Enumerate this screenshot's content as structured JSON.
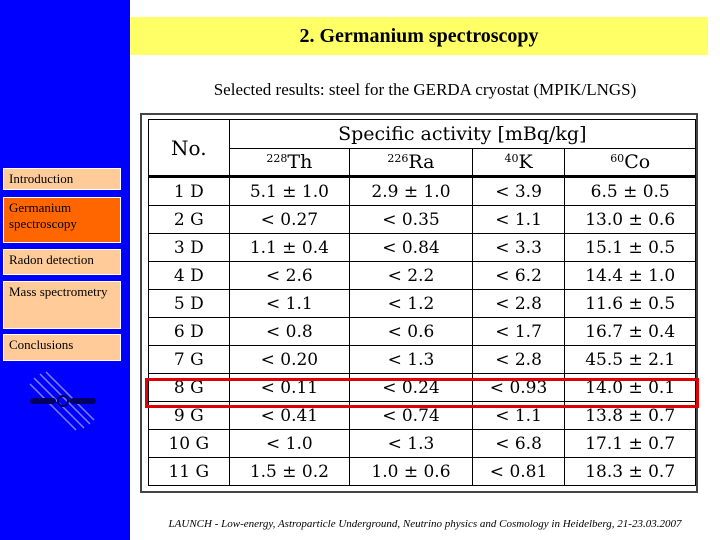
{
  "slide": {
    "title": "2. Germanium spectroscopy",
    "subtitle": "Selected results: steel for the GERDA cryostat (MPIK/LNGS)",
    "footer": "LAUNCH - Low-energy, Astroparticle Underground, Neutrino physics and Cosmology in Heidelberg, 21-23.03.2007"
  },
  "nav": {
    "items": [
      {
        "label": "Introduction",
        "style": "light"
      },
      {
        "label": "Germanium spectroscopy",
        "style": "active"
      },
      {
        "label": "Radon detection",
        "style": "light"
      },
      {
        "label": "Mass spectrometry",
        "style": "light"
      },
      {
        "label": "Conclusions",
        "style": "light"
      }
    ]
  },
  "table": {
    "header_no": "No.",
    "header_activity": "Specific activity [mBq/kg]",
    "isotopes": [
      {
        "mass": "228",
        "symbol": "Th"
      },
      {
        "mass": "226",
        "symbol": "Ra"
      },
      {
        "mass": "40",
        "symbol": "K"
      },
      {
        "mass": "60",
        "symbol": "Co"
      }
    ],
    "rows": [
      [
        "1 D",
        "5.1 ± 1.0",
        "2.9 ± 1.0",
        "< 3.9",
        "6.5 ± 0.5"
      ],
      [
        "2 G",
        "< 0.27",
        "< 0.35",
        "< 1.1",
        "13.0 ± 0.6"
      ],
      [
        "3 D",
        "1.1 ± 0.4",
        "< 0.84",
        "< 3.3",
        "15.1 ± 0.5"
      ],
      [
        "4 D",
        "< 2.6",
        "< 2.2",
        "< 6.2",
        "14.4 ± 1.0"
      ],
      [
        "5 D",
        "< 1.1",
        "< 1.2",
        "< 2.8",
        "11.6 ± 0.5"
      ],
      [
        "6 D",
        "< 0.8",
        "< 0.6",
        "< 1.7",
        "16.7 ± 0.4"
      ],
      [
        "7 G",
        "< 0.20",
        "< 1.3",
        "< 2.8",
        "45.5 ± 2.1"
      ],
      [
        "8 G",
        "< 0.11",
        "< 0.24",
        "< 0.93",
        "14.0 ± 0.1"
      ],
      [
        "9 G",
        "< 0.41",
        "< 0.74",
        "< 1.1",
        "13.8 ± 0.7"
      ],
      [
        "10 G",
        "< 1.0",
        "< 1.3",
        "< 6.8",
        "17.1 ± 0.7"
      ],
      [
        "11 G",
        "1.5 ± 0.2",
        "1.0 ± 0.6",
        "< 0.81",
        "18.3 ± 0.7"
      ]
    ],
    "highlighted_row": "8 G"
  },
  "colors": {
    "sidebar": "#0000ff",
    "title_bar": "#ffff66",
    "nav_active": "#ff6600",
    "nav_inactive": "#ffcc99",
    "highlight": "#e00000"
  },
  "logo": {
    "icon": "bar-magnet-logo-icon"
  }
}
